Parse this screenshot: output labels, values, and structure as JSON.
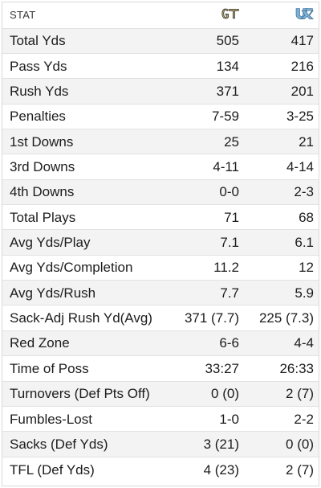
{
  "header": {
    "stat_label": "STAT",
    "team1_logo": "gt-logo-icon",
    "team2_logo": "unc-logo-icon",
    "team1_color": "#b3a369",
    "team2_color": "#7bafd4"
  },
  "rows": [
    {
      "stat": "Total Yds",
      "team1": "505",
      "team2": "417"
    },
    {
      "stat": "Pass Yds",
      "team1": "134",
      "team2": "216"
    },
    {
      "stat": "Rush Yds",
      "team1": "371",
      "team2": "201"
    },
    {
      "stat": "Penalties",
      "team1": "7-59",
      "team2": "3-25"
    },
    {
      "stat": "1st Downs",
      "team1": "25",
      "team2": "21"
    },
    {
      "stat": "3rd Downs",
      "team1": "4-11",
      "team2": "4-14"
    },
    {
      "stat": "4th Downs",
      "team1": "0-0",
      "team2": "2-3"
    },
    {
      "stat": "Total Plays",
      "team1": "71",
      "team2": "68"
    },
    {
      "stat": "Avg Yds/Play",
      "team1": "7.1",
      "team2": "6.1"
    },
    {
      "stat": "Avg Yds/Completion",
      "team1": "11.2",
      "team2": "12"
    },
    {
      "stat": "Avg Yds/Rush",
      "team1": "7.7",
      "team2": "5.9"
    },
    {
      "stat": "Sack-Adj Rush Yd(Avg)",
      "team1": "371 (7.7)",
      "team2": "225 (7.3)"
    },
    {
      "stat": "Red Zone",
      "team1": "6-6",
      "team2": "4-4"
    },
    {
      "stat": "Time of Poss",
      "team1": "33:27",
      "team2": "26:33"
    },
    {
      "stat": "Turnovers (Def Pts Off)",
      "team1": "0 (0)",
      "team2": "2 (7)"
    },
    {
      "stat": "Fumbles-Lost",
      "team1": "1-0",
      "team2": "2-2"
    },
    {
      "stat": "Sacks (Def Yds)",
      "team1": "3 (21)",
      "team2": "0 (0)"
    },
    {
      "stat": "TFL (Def Yds)",
      "team1": "4 (23)",
      "team2": "2 (7)"
    }
  ]
}
